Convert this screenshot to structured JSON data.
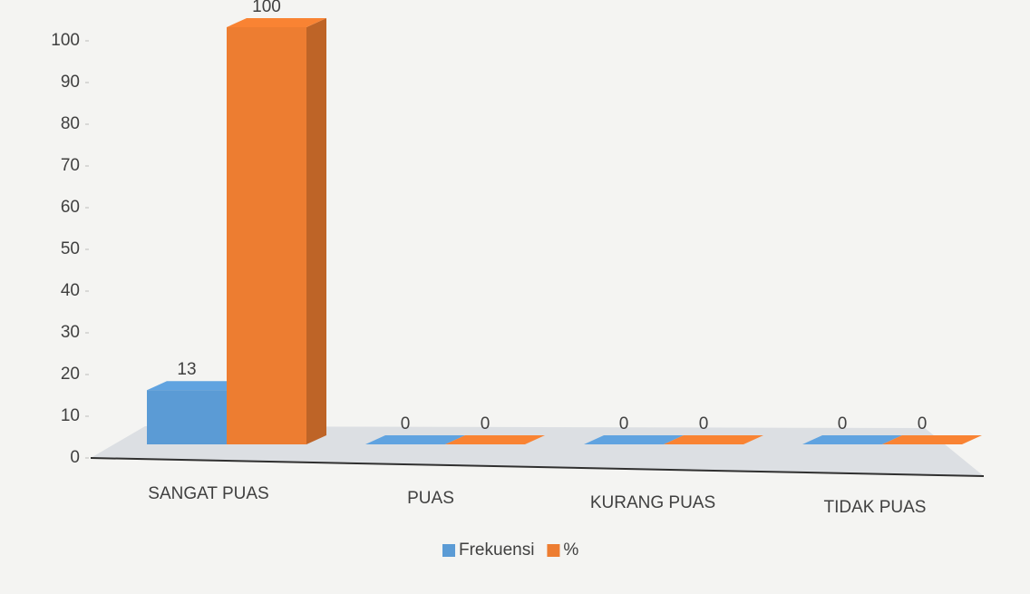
{
  "chart_data": {
    "type": "bar3d",
    "categories": [
      "SANGAT PUAS",
      "PUAS",
      "KURANG PUAS",
      "TIDAK PUAS"
    ],
    "series": [
      {
        "name": "Frekuensi",
        "color": "#5b9bd5",
        "values": [
          13,
          0,
          0,
          0
        ]
      },
      {
        "name": "%",
        "color": "#ed7d31",
        "values": [
          100,
          0,
          0,
          0
        ]
      }
    ],
    "ylim": [
      0,
      100
    ],
    "yticks": [
      0,
      10,
      20,
      30,
      40,
      50,
      60,
      70,
      80,
      90,
      100
    ],
    "legend": "bottom"
  }
}
